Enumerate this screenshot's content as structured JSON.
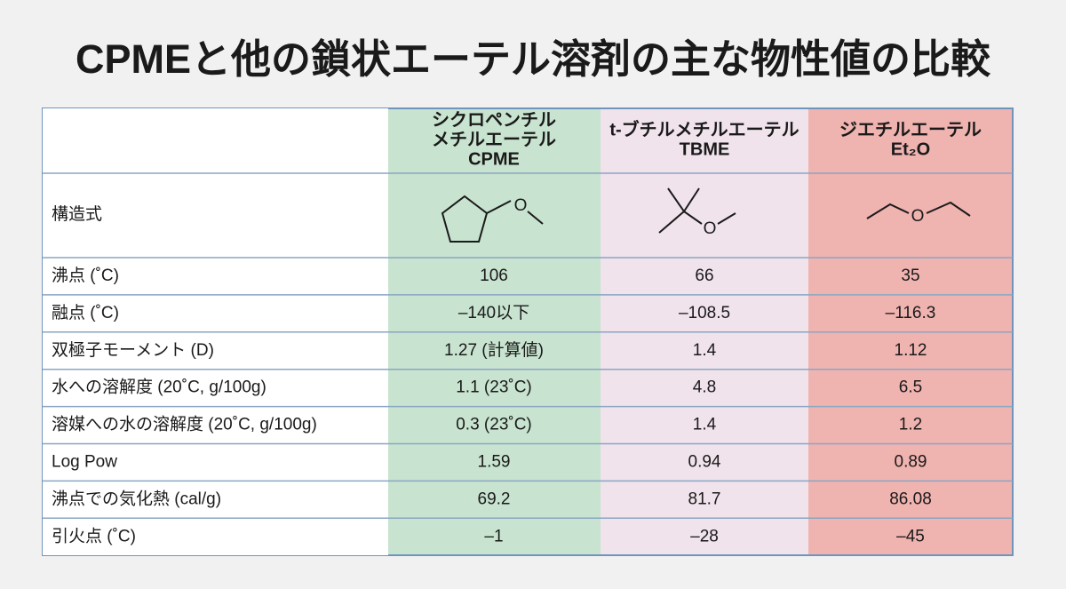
{
  "title": "CPMEと他の鎖状エーテル溶剤の主な物性値の比較",
  "table": {
    "header": [
      {
        "lines": [
          "シクロペンチル",
          "メチルエーテル",
          "CPME"
        ]
      },
      {
        "lines": [
          "t-ブチルメチルエーテル",
          "TBME"
        ]
      },
      {
        "lines": [
          "ジエチルエーテル",
          "Et₂O"
        ]
      }
    ],
    "structure": {
      "label": "構造式",
      "atoms": [
        "O",
        "O",
        "O"
      ]
    },
    "rows": [
      {
        "label": "沸点 (˚C)",
        "cells": [
          "106",
          "66",
          "35"
        ]
      },
      {
        "label": "融点 (˚C)",
        "cells": [
          "–140以下",
          "–108.5",
          "–116.3"
        ]
      },
      {
        "label": "双極子モーメント (D)",
        "cells": [
          "1.27 (計算値)",
          "1.4",
          "1.12"
        ]
      },
      {
        "label": "水への溶解度 (20˚C, g/100g)",
        "cells": [
          "1.1 (23˚C)",
          "4.8",
          "6.5"
        ]
      },
      {
        "label": "溶媒への水の溶解度 (20˚C, g/100g)",
        "cells": [
          "0.3 (23˚C)",
          "1.4",
          "1.2"
        ]
      },
      {
        "label": "Log Pow",
        "cells": [
          "1.59",
          "0.94",
          "0.89"
        ]
      },
      {
        "label": "沸点での気化熱 (cal/g)",
        "cells": [
          "69.2",
          "81.7",
          "86.08"
        ]
      },
      {
        "label": "引火点 (˚C)",
        "cells": [
          "–1",
          "–28",
          "–45"
        ]
      }
    ]
  }
}
